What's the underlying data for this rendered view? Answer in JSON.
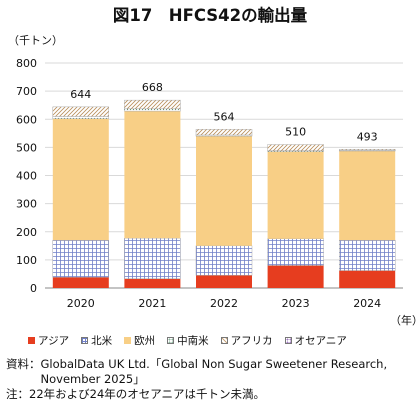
{
  "chart_data": {
    "type": "bar",
    "stacked": true,
    "title": "図17　HFCS42の輸出量",
    "ylabel": "（千トン）",
    "xlabel": "（年）",
    "categories": [
      "2020",
      "2021",
      "2022",
      "2023",
      "2024"
    ],
    "totals": [
      "644",
      "668",
      "564",
      "510",
      "493"
    ],
    "ylim": [
      0,
      800
    ],
    "yticks": [
      0,
      100,
      200,
      300,
      400,
      500,
      600,
      700,
      800
    ],
    "legend_position": "bottom",
    "grid": true,
    "series": [
      {
        "name": "アジア",
        "color": "#e63d1f",
        "pattern": "solid",
        "values": [
          38,
          33,
          45,
          80,
          62
        ]
      },
      {
        "name": "北米",
        "color": "#6f7fc8",
        "pattern": "grid",
        "values": [
          132,
          144,
          105,
          95,
          108
        ]
      },
      {
        "name": "欧州",
        "color": "#f8cf86",
        "pattern": "solid",
        "values": [
          432,
          452,
          390,
          310,
          317
        ]
      },
      {
        "name": "中南米",
        "color": "#8bb59c",
        "pattern": "dots",
        "values": [
          8,
          8,
          4,
          3,
          3
        ]
      },
      {
        "name": "アフリカ",
        "color": "#c9a77e",
        "pattern": "diagonal",
        "values": [
          34,
          31,
          20,
          22,
          3
        ]
      },
      {
        "name": "オセアニア",
        "color": "#a07ac0",
        "pattern": "dots",
        "values": [
          0,
          0,
          0,
          0,
          0
        ]
      }
    ]
  },
  "notes": {
    "source_prefix": "資料：",
    "source_text": "GlobalData UK Ltd.「Global Non Sugar Sweetener Research, November 2025」",
    "note_prefix": "注：",
    "note_text": "22年および24年のオセアニアは千トン未満。"
  }
}
